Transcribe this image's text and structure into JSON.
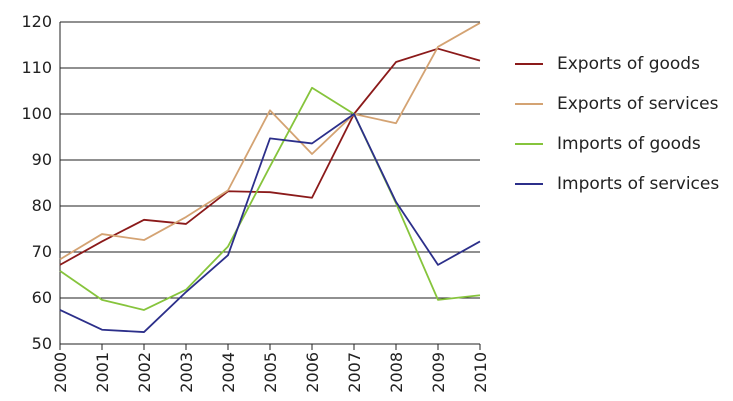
{
  "chart_data": {
    "type": "line",
    "x": [
      "2000",
      "2001",
      "2002",
      "2003",
      "2004",
      "2005",
      "2006",
      "2007",
      "2008",
      "2009",
      "2010"
    ],
    "ylim": [
      50,
      120
    ],
    "yticks": [
      50,
      60,
      70,
      80,
      90,
      100,
      110,
      120
    ],
    "grid": true,
    "legend": "right",
    "series": [
      {
        "name": "Exports of goods",
        "color": "#8b1a1a",
        "values": [
          67.2,
          72.3,
          77.0,
          76.1,
          83.2,
          83.0,
          81.8,
          100,
          111.3,
          114.2,
          111.6
        ]
      },
      {
        "name": "Exports of services",
        "color": "#d4a373",
        "values": [
          68.4,
          73.9,
          72.6,
          77.6,
          83.4,
          100.8,
          91.3,
          100,
          98.0,
          114.6,
          119.8
        ]
      },
      {
        "name": "Imports of goods",
        "color": "#86c43c",
        "values": [
          65.9,
          59.6,
          57.4,
          61.8,
          71.2,
          88.6,
          105.7,
          100,
          80.6,
          59.6,
          60.6
        ]
      },
      {
        "name": "Imports of services",
        "color": "#2c2f8a",
        "values": [
          57.4,
          53.1,
          52.6,
          61.3,
          69.3,
          94.7,
          93.6,
          100,
          80.9,
          67.2,
          72.3
        ]
      }
    ]
  }
}
